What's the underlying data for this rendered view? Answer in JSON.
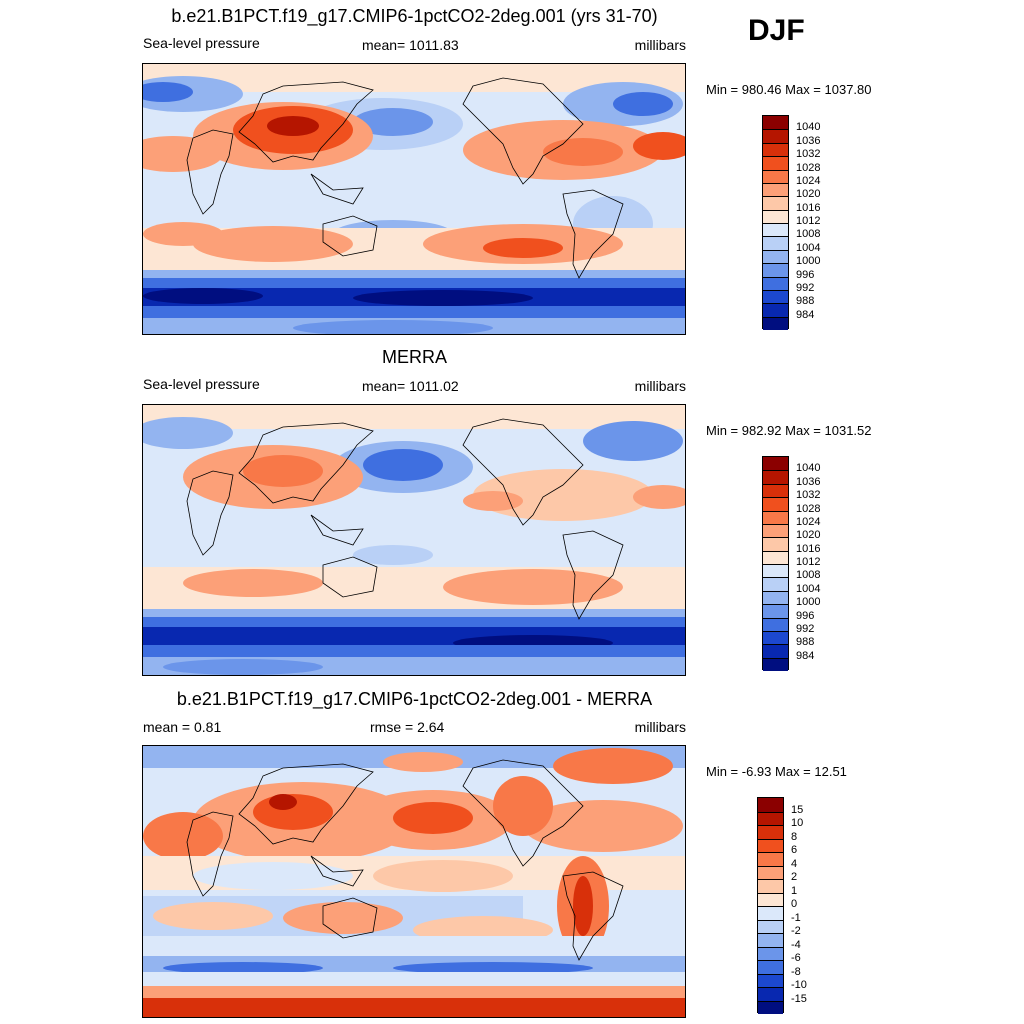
{
  "season": "DJF",
  "panels": [
    {
      "title": "b.e21.B1PCT.f19_g17.CMIP6-1pctCO2-2deg.001 (yrs 31-70)",
      "left_label": "Sea-level pressure",
      "center_label": "mean= 1011.83",
      "right_label": "millibars",
      "minmax": "Min = 980.46 Max = 1037.80",
      "colorbar": {
        "labels": [
          "1040",
          "1036",
          "1032",
          "1028",
          "1024",
          "1020",
          "1016",
          "1012",
          "1008",
          "1004",
          "1000",
          "996",
          "992",
          "988",
          "984"
        ],
        "colors": [
          "#8b0000",
          "#b51500",
          "#d8300a",
          "#f0501e",
          "#f87848",
          "#fca078",
          "#fdc8a8",
          "#fde6d4",
          "#dbe8fa",
          "#b9d0f6",
          "#93b4f0",
          "#6b95ea",
          "#3f6fe0",
          "#1c48cf",
          "#0828b0",
          "#000e80"
        ]
      }
    },
    {
      "title": "MERRA",
      "left_label": "Sea-level pressure",
      "center_label": "mean= 1011.02",
      "right_label": "millibars",
      "minmax": "Min = 982.92 Max = 1031.52",
      "colorbar": {
        "labels": [
          "1040",
          "1036",
          "1032",
          "1028",
          "1024",
          "1020",
          "1016",
          "1012",
          "1008",
          "1004",
          "1000",
          "996",
          "992",
          "988",
          "984"
        ],
        "colors": [
          "#8b0000",
          "#b51500",
          "#d8300a",
          "#f0501e",
          "#f87848",
          "#fca078",
          "#fdc8a8",
          "#fde6d4",
          "#dbe8fa",
          "#b9d0f6",
          "#93b4f0",
          "#6b95ea",
          "#3f6fe0",
          "#1c48cf",
          "#0828b0",
          "#000e80"
        ]
      }
    },
    {
      "title": "b.e21.B1PCT.f19_g17.CMIP6-1pctCO2-2deg.001 - MERRA",
      "left_label": "mean =   0.81",
      "center_label": "rmse =   2.64",
      "right_label": "millibars",
      "minmax": "Min =  -6.93 Max =  12.51",
      "colorbar": {
        "labels": [
          "15",
          "10",
          "8",
          "6",
          "4",
          "2",
          "1",
          "0",
          "-1",
          "-2",
          "-4",
          "-6",
          "-8",
          "-10",
          "-15"
        ],
        "colors": [
          "#8b0000",
          "#b51500",
          "#d8300a",
          "#f0501e",
          "#f87848",
          "#fca078",
          "#fdc8a8",
          "#fde6d4",
          "#dbe8fa",
          "#b9d0f6",
          "#93b4f0",
          "#6b95ea",
          "#3f6fe0",
          "#1c48cf",
          "#0828b0",
          "#000e80"
        ]
      }
    }
  ]
}
